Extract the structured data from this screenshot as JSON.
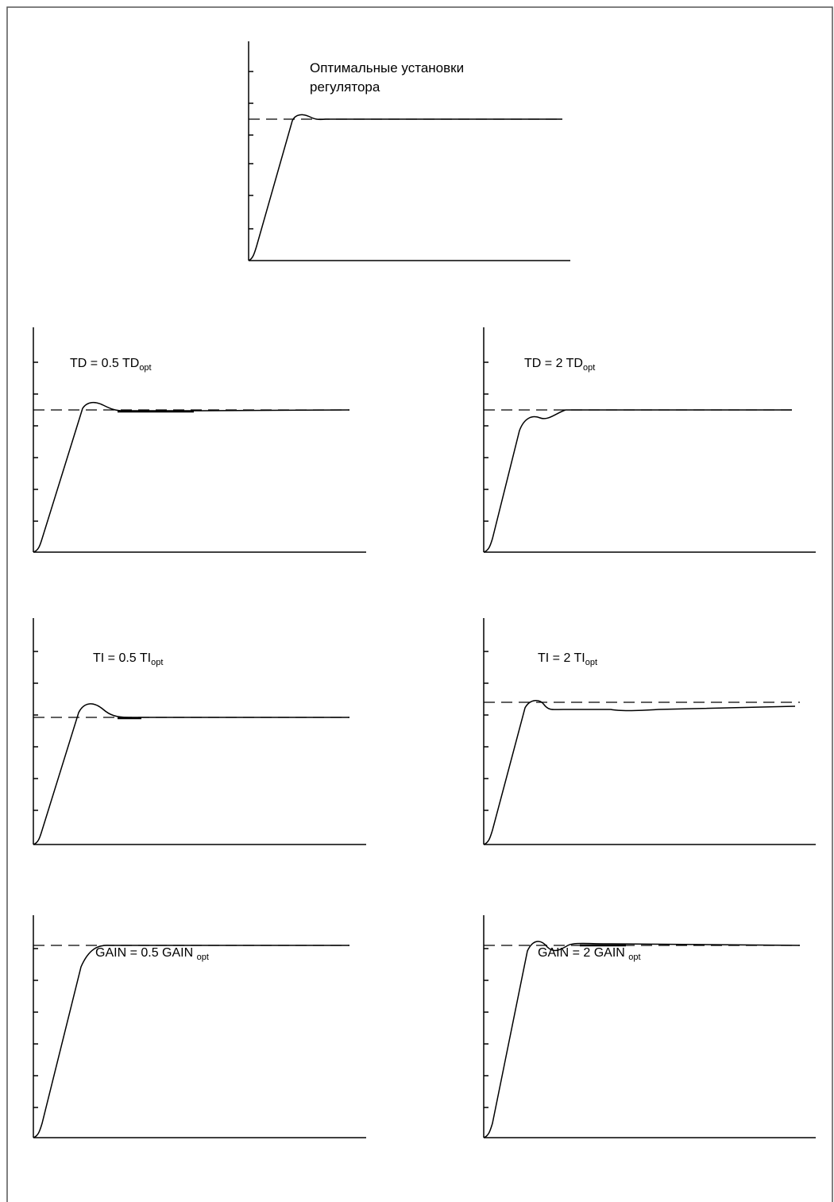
{
  "figure": {
    "panels": [
      {
        "id": "optimal",
        "title_lines": [
          "Оптимальные установки",
          "регулятора"
        ],
        "param": "",
        "factor": "",
        "sub": "",
        "response": "optimal"
      },
      {
        "id": "td-half",
        "param": "TD",
        "factor": "0.5",
        "sub": "opt",
        "response": "small-overshoot"
      },
      {
        "id": "td-double",
        "param": "TD",
        "factor": "2",
        "sub": "opt",
        "response": "sluggish"
      },
      {
        "id": "ti-half",
        "param": "TI",
        "factor": "0.5",
        "sub": "opt",
        "response": "larger-overshoot"
      },
      {
        "id": "ti-double",
        "param": "TI",
        "factor": "2",
        "sub": "opt",
        "response": "offset-slow"
      },
      {
        "id": "gain-half",
        "param": "GAIN",
        "factor": "0.5",
        "sub": "opt",
        "response": "overdamped"
      },
      {
        "id": "gain-double",
        "param": "GAIN",
        "factor": "2",
        "sub": "opt",
        "response": "oscillating"
      }
    ],
    "equals_sign": "=",
    "line_color": "#000000",
    "border_color": "#555555"
  }
}
